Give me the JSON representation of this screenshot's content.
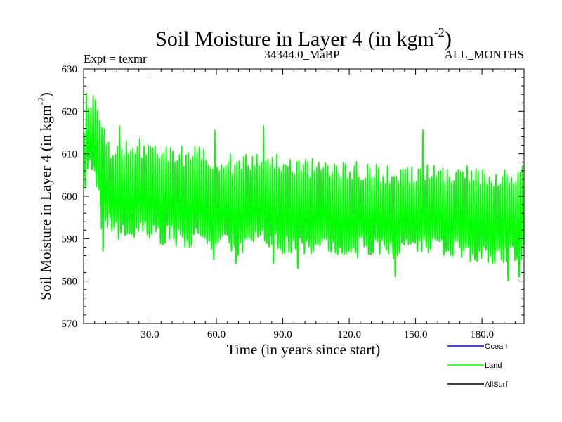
{
  "chart_data": {
    "type": "line",
    "title_main": "Soil Moisture in Layer 4 (in kgm",
    "title_sup": "-2",
    "title_close": ")",
    "experiment": "Expt = texmr",
    "period": "34344.0_MaBP",
    "months": "ALL_MONTHS",
    "xlabel": "Time (in years since start)",
    "ylabel_main": "Soil Moisture in Layer 4 (in kgm",
    "ylabel_sup": "-2",
    "ylabel_close": ")",
    "xlim": [
      0,
      199
    ],
    "ylim": [
      570,
      630
    ],
    "x_ticks": [
      30,
      60,
      90,
      120,
      150,
      180
    ],
    "x_tick_labels": [
      "30.0",
      "60.0",
      "90.0",
      "120.0",
      "150.0",
      "180.0"
    ],
    "y_ticks": [
      570,
      580,
      590,
      600,
      610,
      620,
      630
    ],
    "y_tick_labels": [
      "570",
      "580",
      "590",
      "600",
      "610",
      "620",
      "630"
    ],
    "series": [
      {
        "name": "Ocean",
        "color": "#0000ff",
        "values": []
      },
      {
        "name": "Land",
        "color": "#00ff00",
        "annual_points": [
          [
            0,
            606
          ],
          [
            2,
            618
          ],
          [
            5,
            612
          ],
          [
            10,
            603
          ],
          [
            15,
            600
          ],
          [
            20,
            601
          ],
          [
            25,
            601
          ],
          [
            30,
            600
          ],
          [
            40,
            599
          ],
          [
            50,
            599
          ],
          [
            60,
            598
          ],
          [
            70,
            597
          ],
          [
            80,
            599
          ],
          [
            90,
            597
          ],
          [
            100,
            596
          ],
          [
            110,
            597
          ],
          [
            120,
            596
          ],
          [
            130,
            596
          ],
          [
            140,
            595
          ],
          [
            150,
            596
          ],
          [
            160,
            596
          ],
          [
            170,
            595
          ],
          [
            180,
            595
          ],
          [
            190,
            594
          ],
          [
            199,
            595
          ]
        ],
        "seasonal_amplitude": [
          [
            0,
            8
          ],
          [
            5,
            10
          ],
          [
            20,
            11
          ],
          [
            60,
            11
          ],
          [
            100,
            11
          ],
          [
            150,
            10
          ],
          [
            199,
            11
          ]
        ],
        "notable_max": [
          [
            2,
            621
          ],
          [
            3,
            621
          ],
          [
            16,
            617
          ],
          [
            59,
            616
          ],
          [
            81,
            617
          ],
          [
            153,
            616
          ],
          [
            199,
            610
          ]
        ],
        "notable_min": [
          [
            8,
            587
          ],
          [
            58,
            585
          ],
          [
            68,
            584
          ],
          [
            85,
            584
          ],
          [
            96,
            583
          ],
          [
            140,
            581
          ],
          [
            191,
            580
          ],
          [
            196,
            581
          ]
        ]
      },
      {
        "name": "AllSurf",
        "color": "#000000",
        "values": []
      }
    ]
  }
}
